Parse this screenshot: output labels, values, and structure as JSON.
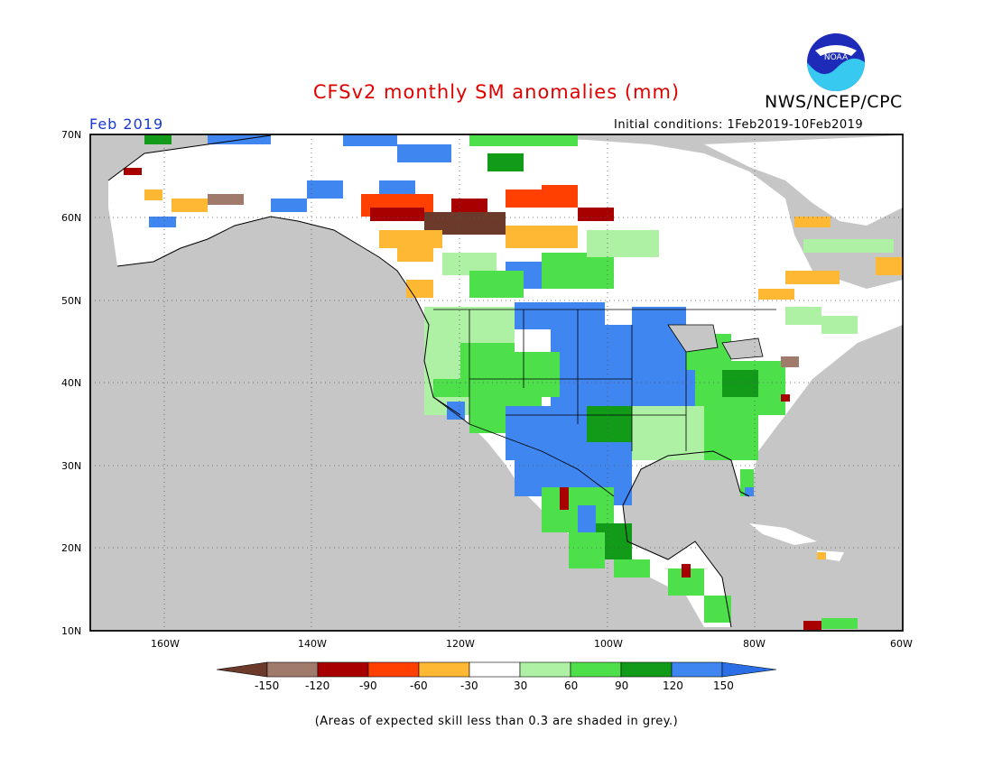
{
  "header": {
    "title": "CFSv2 monthly SM anomalies (mm)",
    "agency": "NWS/NCEP/CPC",
    "logo_text": "NOAA",
    "month": "Feb 2019",
    "initial_conditions": "Initial conditions: 1Feb2019-10Feb2019"
  },
  "map": {
    "projection": "equirectangular",
    "lon_range": [
      -170,
      -60
    ],
    "lat_range": [
      10,
      70
    ],
    "latitude_labels": [
      "70N",
      "60N",
      "50N",
      "40N",
      "30N",
      "20N",
      "10N"
    ],
    "longitude_labels": [
      "160W",
      "140W",
      "120W",
      "100W",
      "80W",
      "60W"
    ],
    "colors": {
      "ocean_grey": "#c6c6c6",
      "land_white": "#ffffff",
      "grid_dotted": "#555555",
      "coast": "#000000"
    }
  },
  "legend": {
    "labels": [
      "-150",
      "-120",
      "-90",
      "-60",
      "-30",
      "30",
      "60",
      "90",
      "120",
      "150"
    ],
    "colors": [
      "#6b3a2a",
      "#a07b6c",
      "#a80000",
      "#ff4000",
      "#ffb833",
      "#ffffff",
      "#aef0a4",
      "#4ee04a",
      "#129b19",
      "#3f86f0",
      "#2a6fe6"
    ]
  },
  "footnote": "(Areas of expected skill less than 0.3 are shaded in grey.)",
  "icons": {
    "logo": "noaa-logo-icon"
  }
}
